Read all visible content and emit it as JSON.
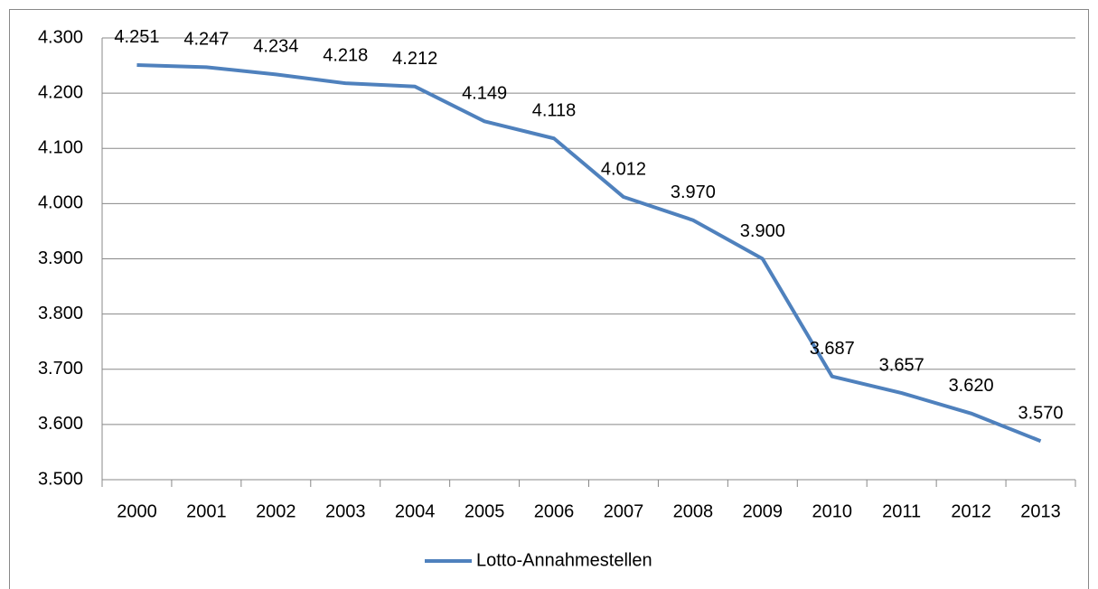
{
  "chart_data": {
    "type": "line",
    "categories": [
      "2000",
      "2001",
      "2002",
      "2003",
      "2004",
      "2005",
      "2006",
      "2007",
      "2008",
      "2009",
      "2010",
      "2011",
      "2012",
      "2013"
    ],
    "series": [
      {
        "name": "Lotto-Annahmestellen",
        "color": "#4f81bd",
        "values": [
          4251,
          4247,
          4234,
          4218,
          4212,
          4149,
          4118,
          4012,
          3970,
          3900,
          3687,
          3657,
          3620,
          3570
        ],
        "value_labels": [
          "4.251",
          "4.247",
          "4.234",
          "4.218",
          "4.212",
          "4.149",
          "4.118",
          "4.012",
          "3.970",
          "3.900",
          "3.687",
          "3.657",
          "3.620",
          "3.570"
        ]
      }
    ],
    "ylim": [
      3500,
      4300
    ],
    "yticks": [
      {
        "value": 3500,
        "label": "3.500"
      },
      {
        "value": 3600,
        "label": "3.600"
      },
      {
        "value": 3700,
        "label": "3.700"
      },
      {
        "value": 3800,
        "label": "3.800"
      },
      {
        "value": 3900,
        "label": "3.900"
      },
      {
        "value": 4000,
        "label": "4.000"
      },
      {
        "value": 4100,
        "label": "4.100"
      },
      {
        "value": 4200,
        "label": "4.200"
      },
      {
        "value": 4300,
        "label": "4.300"
      }
    ],
    "grid": true,
    "legend": "bottom"
  }
}
